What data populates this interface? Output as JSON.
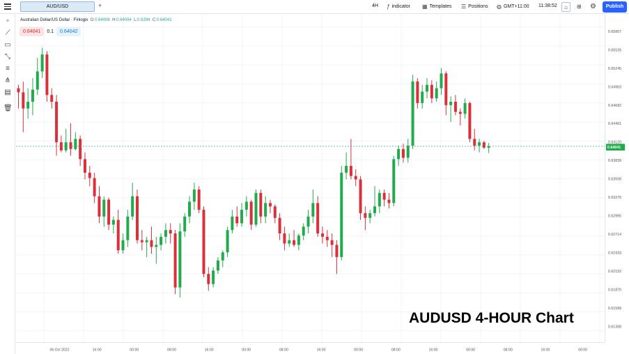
{
  "toolbar": {
    "symbol_tab": "AUD/USD",
    "add_tab": "+",
    "timeframe": "4H",
    "indicator_label": "indicator",
    "templates_label": "Templates",
    "positions_label": "Positions",
    "timezone_label": "GMT+11:00",
    "clock": "11:38:52",
    "publish_label": "Publish",
    "icons": [
      "menu-icon",
      "fx-icon",
      "templates-icon",
      "positions-icon",
      "globe-icon",
      "drawing-mode-icon",
      "layout-icon",
      "gear-icon"
    ]
  },
  "legend": {
    "name": "Australian Dollar/US Dollar · Finlogix",
    "o_label": "O:",
    "o": "0.64008",
    "h_label": "H:",
    "h": "0.64094",
    "l_label": "L:",
    "l": "0.6394",
    "c_label": "C:",
    "c": "0.64041"
  },
  "quote": {
    "sell": "0.64041",
    "spread": "0.1",
    "buy": "0.64042"
  },
  "left_tools": [
    "crosshair-icon",
    "trend-line-icon",
    "rectangle-icon",
    "ruler-icon",
    "horizontal-lines-icon",
    "pitchfork-icon",
    "text-note-icon",
    "trash-icon"
  ],
  "watermark": "AUDUSD 4-HOUR Chart",
  "colors": {
    "up": "#22ab4c",
    "down": "#d9303a",
    "last_price_line": "#22ab94",
    "accent": "#2962ff"
  },
  "chart_data": {
    "type": "candlestick",
    "y_ticks": [
      "0.65807",
      "0.65526",
      "0.65245",
      "0.64963",
      "0.64682",
      "0.64401",
      "0.64120",
      "0.63839",
      "0.63558",
      "0.63276",
      "0.62995",
      "0.62714",
      "0.62433",
      "0.62152",
      "0.61870",
      "0.61589",
      "0.61308"
    ],
    "ylim": [
      0.6114,
      0.6599
    ],
    "x_ticks": [
      "06 Oct 2022",
      "16:00",
      "00:00",
      "08:00",
      "16:00",
      "00:00",
      "08:00",
      "16:00",
      "00:00",
      "08:00",
      "16:00",
      "00:00",
      "08:00",
      "16:00",
      "00:00"
    ],
    "last_price": 0.64041,
    "last_price_label": "0.64041",
    "candles": [
      [
        0.649,
        0.6495,
        0.646,
        0.6484
      ],
      [
        0.6484,
        0.65,
        0.6425,
        0.646
      ],
      [
        0.646,
        0.649,
        0.6445,
        0.647
      ],
      [
        0.647,
        0.6505,
        0.645,
        0.6488
      ],
      [
        0.6488,
        0.6535,
        0.648,
        0.6515
      ],
      [
        0.6515,
        0.655,
        0.6505,
        0.654
      ],
      [
        0.654,
        0.6545,
        0.647,
        0.648
      ],
      [
        0.648,
        0.649,
        0.646,
        0.647
      ],
      [
        0.647,
        0.648,
        0.639,
        0.641
      ],
      [
        0.641,
        0.642,
        0.6395,
        0.6398
      ],
      [
        0.6398,
        0.643,
        0.6395,
        0.641
      ],
      [
        0.641,
        0.6438,
        0.639,
        0.64
      ],
      [
        0.64,
        0.6425,
        0.6398,
        0.6415
      ],
      [
        0.6415,
        0.642,
        0.6375,
        0.6385
      ],
      [
        0.6385,
        0.6395,
        0.6355,
        0.6365
      ],
      [
        0.6365,
        0.6375,
        0.6345,
        0.6357
      ],
      [
        0.6357,
        0.6365,
        0.632,
        0.633
      ],
      [
        0.633,
        0.6345,
        0.629,
        0.63
      ],
      [
        0.63,
        0.633,
        0.6285,
        0.6325
      ],
      [
        0.6325,
        0.6328,
        0.628,
        0.6288
      ],
      [
        0.6288,
        0.63,
        0.6275,
        0.6295
      ],
      [
        0.6295,
        0.631,
        0.6245,
        0.625
      ],
      [
        0.625,
        0.6275,
        0.6245,
        0.6265
      ],
      [
        0.6265,
        0.631,
        0.6255,
        0.63
      ],
      [
        0.63,
        0.635,
        0.6295,
        0.633
      ],
      [
        0.633,
        0.634,
        0.626,
        0.6265
      ],
      [
        0.6265,
        0.628,
        0.625,
        0.6262
      ],
      [
        0.6262,
        0.627,
        0.624,
        0.6265
      ],
      [
        0.6265,
        0.6285,
        0.6245,
        0.6255
      ],
      [
        0.6255,
        0.627,
        0.623,
        0.6258
      ],
      [
        0.6258,
        0.6275,
        0.625,
        0.627
      ],
      [
        0.627,
        0.629,
        0.626,
        0.628
      ],
      [
        0.628,
        0.629,
        0.626,
        0.6275
      ],
      [
        0.6275,
        0.628,
        0.6185,
        0.6195
      ],
      [
        0.6195,
        0.629,
        0.618,
        0.6278
      ],
      [
        0.6278,
        0.6305,
        0.627,
        0.63
      ],
      [
        0.63,
        0.633,
        0.629,
        0.6322
      ],
      [
        0.6322,
        0.635,
        0.631,
        0.634
      ],
      [
        0.634,
        0.6345,
        0.6305,
        0.631
      ],
      [
        0.631,
        0.6315,
        0.621,
        0.6215
      ],
      [
        0.6215,
        0.6225,
        0.619,
        0.62
      ],
      [
        0.62,
        0.6225,
        0.6195,
        0.622
      ],
      [
        0.622,
        0.624,
        0.6215,
        0.6235
      ],
      [
        0.6235,
        0.625,
        0.6225,
        0.6247
      ],
      [
        0.6247,
        0.6285,
        0.624,
        0.628
      ],
      [
        0.628,
        0.631,
        0.6275,
        0.63
      ],
      [
        0.63,
        0.6315,
        0.6285,
        0.629
      ],
      [
        0.629,
        0.632,
        0.6285,
        0.631
      ],
      [
        0.631,
        0.633,
        0.63,
        0.6322
      ],
      [
        0.6322,
        0.6325,
        0.628,
        0.6288
      ],
      [
        0.6288,
        0.634,
        0.6285,
        0.6335
      ],
      [
        0.6335,
        0.634,
        0.629,
        0.63
      ],
      [
        0.63,
        0.633,
        0.629,
        0.632
      ],
      [
        0.632,
        0.6325,
        0.6305,
        0.6315
      ],
      [
        0.6315,
        0.6318,
        0.629,
        0.6298
      ],
      [
        0.6298,
        0.6305,
        0.6265,
        0.6275
      ],
      [
        0.6275,
        0.6285,
        0.625,
        0.626
      ],
      [
        0.626,
        0.6275,
        0.6255,
        0.6265
      ],
      [
        0.6265,
        0.628,
        0.6255,
        0.6258
      ],
      [
        0.6258,
        0.6275,
        0.625,
        0.6272
      ],
      [
        0.6272,
        0.629,
        0.6265,
        0.6285
      ],
      [
        0.6285,
        0.631,
        0.6275,
        0.63
      ],
      [
        0.63,
        0.634,
        0.629,
        0.632
      ],
      [
        0.632,
        0.633,
        0.627,
        0.6275
      ],
      [
        0.6275,
        0.6285,
        0.626,
        0.627
      ],
      [
        0.627,
        0.628,
        0.6255,
        0.6265
      ],
      [
        0.6265,
        0.6275,
        0.624,
        0.6258
      ],
      [
        0.6258,
        0.6265,
        0.6215,
        0.624
      ],
      [
        0.624,
        0.6375,
        0.6235,
        0.6365
      ],
      [
        0.6365,
        0.6395,
        0.6355,
        0.6375
      ],
      [
        0.6375,
        0.6415,
        0.6355,
        0.636
      ],
      [
        0.636,
        0.637,
        0.6345,
        0.6355
      ],
      [
        0.6355,
        0.636,
        0.6295,
        0.6305
      ],
      [
        0.6305,
        0.6315,
        0.628,
        0.6298
      ],
      [
        0.6298,
        0.631,
        0.629,
        0.6305
      ],
      [
        0.6305,
        0.6345,
        0.63,
        0.6315
      ],
      [
        0.6315,
        0.634,
        0.6305,
        0.6335
      ],
      [
        0.6335,
        0.634,
        0.6315,
        0.6325
      ],
      [
        0.6325,
        0.6335,
        0.6312,
        0.632
      ],
      [
        0.632,
        0.639,
        0.6315,
        0.6385
      ],
      [
        0.6385,
        0.6405,
        0.6375,
        0.64
      ],
      [
        0.64,
        0.6408,
        0.638,
        0.6387
      ],
      [
        0.6387,
        0.6415,
        0.638,
        0.6405
      ],
      [
        0.6405,
        0.651,
        0.64,
        0.65
      ],
      [
        0.65,
        0.6505,
        0.646,
        0.6468
      ],
      [
        0.6468,
        0.6495,
        0.646,
        0.6485
      ],
      [
        0.6485,
        0.6505,
        0.6475,
        0.6495
      ],
      [
        0.6495,
        0.6502,
        0.6468,
        0.6475
      ],
      [
        0.6475,
        0.65,
        0.647,
        0.649
      ],
      [
        0.649,
        0.652,
        0.648,
        0.6512
      ],
      [
        0.6512,
        0.6515,
        0.645,
        0.6465
      ],
      [
        0.6465,
        0.6478,
        0.644,
        0.647
      ],
      [
        0.647,
        0.648,
        0.645,
        0.6455
      ],
      [
        0.6455,
        0.646,
        0.6435,
        0.6452
      ],
      [
        0.6452,
        0.6475,
        0.6445,
        0.6468
      ],
      [
        0.6468,
        0.647,
        0.641,
        0.6415
      ],
      [
        0.6415,
        0.643,
        0.6398,
        0.6405
      ],
      [
        0.6405,
        0.6415,
        0.6395,
        0.641
      ],
      [
        0.641,
        0.6412,
        0.64,
        0.6402
      ],
      [
        0.6402,
        0.6409,
        0.6394,
        0.6404
      ]
    ]
  }
}
